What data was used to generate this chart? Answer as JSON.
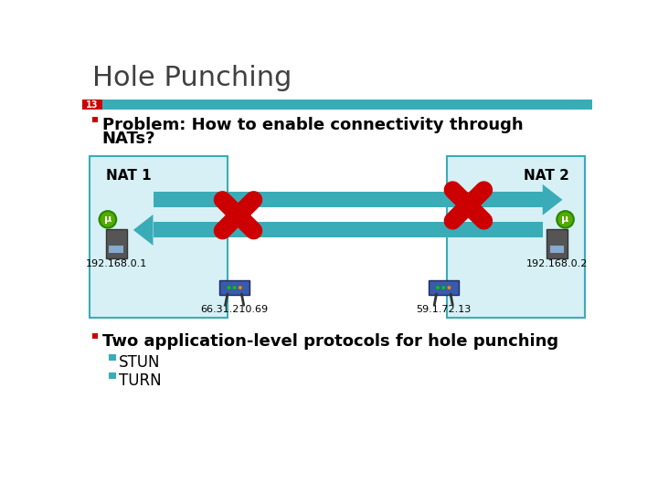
{
  "title": "Hole Punching",
  "slide_number": "13",
  "bg_color": "#ffffff",
  "title_color": "#404040",
  "teal_bar_color": "#3aacb8",
  "slide_num_bg": "#cc0000",
  "slide_num_color": "#ffffff",
  "bullet_color": "#cc0000",
  "nat_box_color": "#d6f0f5",
  "nat_box_border": "#3aacb8",
  "arrow_color": "#3aacb8",
  "cross_color": "#cc0000",
  "bullet1_line1": "Problem: How to enable connectivity through",
  "bullet1_line2": "NATs?",
  "bullet2": "Two application-level protocols for hole punching",
  "sub1": "STUN",
  "sub2": "TURN",
  "nat1_label": "NAT 1",
  "nat2_label": "NAT 2",
  "ip_left": "192.168.0.1",
  "ip_right": "192.168.0.2",
  "ip_router1": "66.31.210.69",
  "ip_router2": "59.1.72.13"
}
